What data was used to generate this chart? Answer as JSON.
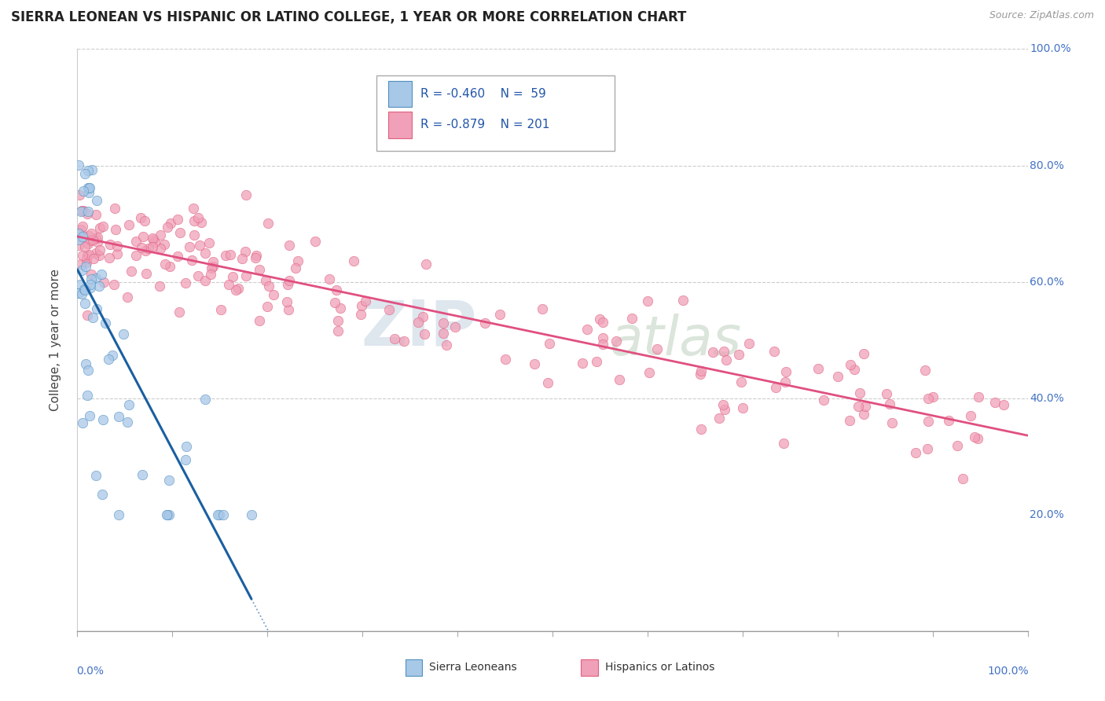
{
  "title": "SIERRA LEONEAN VS HISPANIC OR LATINO COLLEGE, 1 YEAR OR MORE CORRELATION CHART",
  "source": "Source: ZipAtlas.com",
  "ylabel": "College, 1 year or more",
  "legend_r1": "R = -0.460",
  "legend_n1": "N =  59",
  "legend_r2": "R = -0.879",
  "legend_n2": "N = 201",
  "color_blue_fill": "#a8c8e8",
  "color_blue_edge": "#5090c0",
  "color_pink_fill": "#f0a0b8",
  "color_pink_edge": "#e06080",
  "color_blue_line": "#1a5fa0",
  "color_pink_line": "#e05080",
  "watermark_zip": "ZIP",
  "watermark_atlas": "atlas",
  "ytick_positions": [
    0.0,
    0.2,
    0.4,
    0.6,
    0.8,
    1.0
  ],
  "ytick_labels_right": [
    "",
    "20.0%",
    "40.0%",
    "60.0%",
    "80.0%",
    "100.0%"
  ],
  "xtick_left_label": "0.0%",
  "xtick_right_label": "100.0%",
  "legend_label1": "Sierra Leoneans",
  "legend_label2": "Hispanics or Latinos"
}
